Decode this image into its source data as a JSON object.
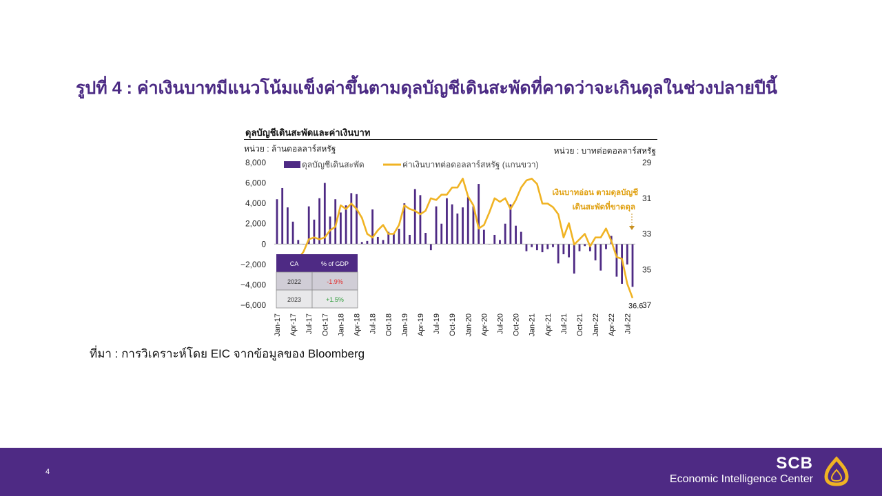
{
  "slide": {
    "title": "รูปที่ 4 : ค่าเงินบาทมีแนวโน้มแข็งค่าขึ้นตามดุลบัญชีเดินสะพัดที่คาดว่าจะเกินดุลในช่วงปลายปีนี้",
    "source": "ที่มา : การวิเคราะห์โดย EIC จากข้อมูลของ Bloomberg",
    "page_number": "4",
    "brand_name": "SCB",
    "brand_sub": "Economic Intelligence Center"
  },
  "chart_data": {
    "type": "bar",
    "title": "ดุลบัญชีเดินสะพัดและค่าเงินบาท",
    "unit_left": "หน่วย : ล้านดอลลาร์สหรัฐ",
    "unit_right": "หน่วย : บาทต่อดอลลาร์สหรัฐ",
    "legend": [
      "ดุลบัญชีเดินสะพัด",
      "ค่าเงินบาทต่อดอลลาร์สหรัฐ (แกนขวา)"
    ],
    "y_left": {
      "min": -6000,
      "max": 8000,
      "ticks": [
        "8,000",
        "6,000",
        "4,000",
        "2,000",
        "0",
        "−2,000",
        "−4,000",
        "−6,000"
      ]
    },
    "y_right": {
      "min": 29,
      "max": 37,
      "inverted": true,
      "ticks": [
        "29",
        "31",
        "33",
        "35",
        "37"
      ]
    },
    "x_tick_labels": [
      "Jan-17",
      "Apr-17",
      "Jul-17",
      "Oct-17",
      "Jan-18",
      "Apr-18",
      "Jul-18",
      "Oct-18",
      "Jan-19",
      "Apr-19",
      "Jul-19",
      "Oct-19",
      "Jan-20",
      "Apr-20",
      "Jul-20",
      "Oct-20",
      "Jan-21",
      "Apr-21",
      "Jul-21",
      "Oct-21",
      "Jan-22",
      "Apr-22",
      "Jul-22"
    ],
    "categories": [
      "Jan-17",
      "Feb-17",
      "Mar-17",
      "Apr-17",
      "May-17",
      "Jun-17",
      "Jul-17",
      "Aug-17",
      "Sep-17",
      "Oct-17",
      "Nov-17",
      "Dec-17",
      "Jan-18",
      "Feb-18",
      "Mar-18",
      "Apr-18",
      "May-18",
      "Jun-18",
      "Jul-18",
      "Aug-18",
      "Sep-18",
      "Oct-18",
      "Nov-18",
      "Dec-18",
      "Jan-19",
      "Feb-19",
      "Mar-19",
      "Apr-19",
      "May-19",
      "Jun-19",
      "Jul-19",
      "Aug-19",
      "Sep-19",
      "Oct-19",
      "Nov-19",
      "Dec-19",
      "Jan-20",
      "Feb-20",
      "Mar-20",
      "Apr-20",
      "May-20",
      "Jun-20",
      "Jul-20",
      "Aug-20",
      "Sep-20",
      "Oct-20",
      "Nov-20",
      "Dec-20",
      "Jan-21",
      "Feb-21",
      "Mar-21",
      "Apr-21",
      "May-21",
      "Jun-21",
      "Jul-21",
      "Aug-21",
      "Sep-21",
      "Oct-21",
      "Nov-21",
      "Dec-21",
      "Jan-22",
      "Feb-22",
      "Mar-22",
      "Apr-22",
      "May-22",
      "Jun-22",
      "Jul-22",
      "Aug-22"
    ],
    "series": [
      {
        "name": "ดุลบัญชีเดินสะพัด",
        "axis": "left",
        "color": "#4e2a84",
        "values": [
          4400,
          5500,
          3600,
          2200,
          400,
          0,
          3700,
          2400,
          4500,
          6000,
          2700,
          4400,
          3100,
          3800,
          5000,
          4900,
          200,
          300,
          3400,
          700,
          400,
          1200,
          1000,
          1500,
          4000,
          900,
          5400,
          4800,
          1100,
          -600,
          3700,
          2000,
          4500,
          3900,
          3000,
          3600,
          4600,
          3700,
          5900,
          1400,
          0,
          900,
          400,
          2000,
          3900,
          1800,
          1200,
          -700,
          -300,
          -600,
          -800,
          -500,
          -300,
          -1900,
          -1000,
          -1300,
          -2900,
          -700,
          -200,
          -700,
          -1600,
          -2600,
          -500,
          800,
          -3200,
          -3900,
          -2000,
          -4200
        ]
      },
      {
        "name": "ค่าเงินบาทต่อดอลลาร์สหรัฐ (แกนขวา)",
        "axis": "right",
        "color": "#f0b323",
        "values": [
          35.8,
          35.5,
          35.0,
          34.5,
          34.4,
          34.0,
          33.3,
          33.2,
          33.3,
          33.2,
          32.8,
          32.6,
          31.4,
          31.6,
          31.3,
          31.6,
          32.1,
          33.0,
          33.2,
          32.8,
          32.5,
          33.0,
          33.0,
          32.5,
          31.4,
          31.6,
          31.7,
          31.9,
          31.7,
          31.0,
          31.1,
          30.8,
          30.8,
          30.4,
          30.4,
          29.9,
          30.9,
          31.4,
          32.7,
          32.5,
          31.8,
          31.0,
          31.2,
          31.0,
          31.6,
          31.1,
          30.4,
          30.0,
          29.9,
          30.2,
          31.3,
          31.3,
          31.5,
          31.9,
          33.2,
          32.4,
          33.6,
          33.3,
          33.0,
          33.7,
          33.2,
          33.2,
          32.7,
          33.4,
          34.3,
          34.4,
          35.8,
          36.6
        ]
      }
    ],
    "end_label": "36.6",
    "annotation": [
      "เงินบาทอ่อน ตามดุลบัญชี",
      "เดินสะพัดที่ขาดดุล"
    ],
    "table": {
      "headers": [
        "CA",
        "% of GDP"
      ],
      "rows": [
        [
          "2022",
          "-1.9%"
        ],
        [
          "2023",
          "+1.5%"
        ]
      ],
      "row_colors": [
        "#e03030",
        "#2e9c3a"
      ]
    },
    "grid": false,
    "legend_position": "top"
  }
}
